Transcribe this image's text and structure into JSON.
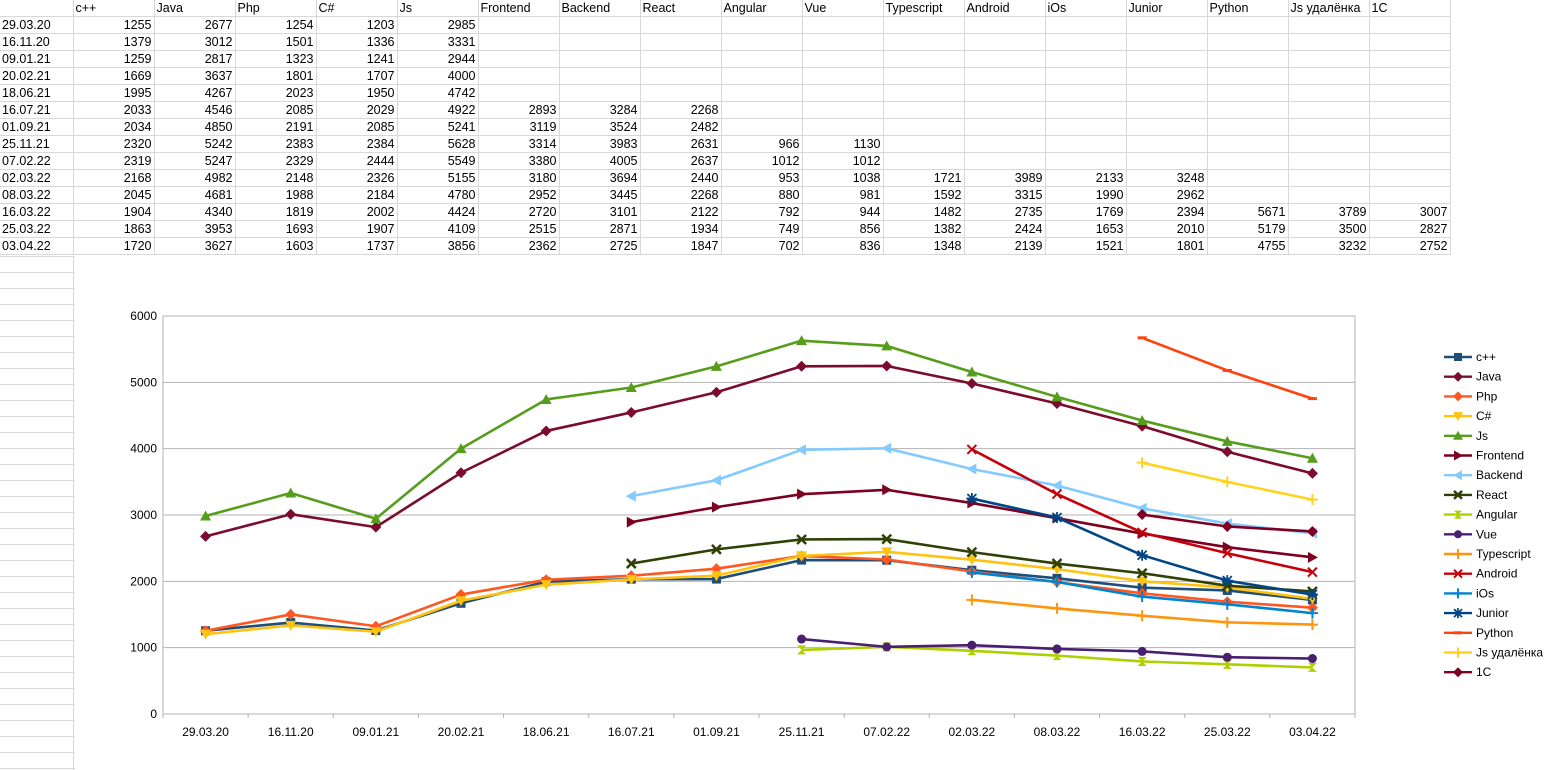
{
  "sheet": {
    "headers": [
      "",
      "c++",
      "Java",
      "Php",
      "C#",
      "Js",
      "Frontend",
      "Backend",
      "React",
      "Angular",
      "Vue",
      "Typescript",
      "Android",
      "iOs",
      "Junior",
      "Python",
      "Js удалёнка",
      "1C"
    ],
    "rows": [
      [
        "29.03.20",
        "1255",
        "2677",
        "1254",
        "1203",
        "2985",
        "",
        "",
        "",
        "",
        "",
        "",
        "",
        "",
        "",
        "",
        "",
        ""
      ],
      [
        "16.11.20",
        "1379",
        "3012",
        "1501",
        "1336",
        "3331",
        "",
        "",
        "",
        "",
        "",
        "",
        "",
        "",
        "",
        "",
        "",
        ""
      ],
      [
        "09.01.21",
        "1259",
        "2817",
        "1323",
        "1241",
        "2944",
        "",
        "",
        "",
        "",
        "",
        "",
        "",
        "",
        "",
        "",
        "",
        ""
      ],
      [
        "20.02.21",
        "1669",
        "3637",
        "1801",
        "1707",
        "4000",
        "",
        "",
        "",
        "",
        "",
        "",
        "",
        "",
        "",
        "",
        "",
        ""
      ],
      [
        "18.06.21",
        "1995",
        "4267",
        "2023",
        "1950",
        "4742",
        "",
        "",
        "",
        "",
        "",
        "",
        "",
        "",
        "",
        "",
        "",
        ""
      ],
      [
        "16.07.21",
        "2033",
        "4546",
        "2085",
        "2029",
        "4922",
        "2893",
        "3284",
        "2268",
        "",
        "",
        "",
        "",
        "",
        "",
        "",
        "",
        ""
      ],
      [
        "01.09.21",
        "2034",
        "4850",
        "2191",
        "2085",
        "5241",
        "3119",
        "3524",
        "2482",
        "",
        "",
        "",
        "",
        "",
        "",
        "",
        "",
        ""
      ],
      [
        "25.11.21",
        "2320",
        "5242",
        "2383",
        "2384",
        "5628",
        "3314",
        "3983",
        "2631",
        "966",
        "1130",
        "",
        "",
        "",
        "",
        "",
        "",
        ""
      ],
      [
        "07.02.22",
        "2319",
        "5247",
        "2329",
        "2444",
        "5549",
        "3380",
        "4005",
        "2637",
        "1012",
        "1012",
        "",
        "",
        "",
        "",
        "",
        "",
        ""
      ],
      [
        "02.03.22",
        "2168",
        "4982",
        "2148",
        "2326",
        "5155",
        "3180",
        "3694",
        "2440",
        "953",
        "1038",
        "1721",
        "3989",
        "2133",
        "3248",
        "",
        "",
        ""
      ],
      [
        "08.03.22",
        "2045",
        "4681",
        "1988",
        "2184",
        "4780",
        "2952",
        "3445",
        "2268",
        "880",
        "981",
        "1592",
        "3315",
        "1990",
        "2962",
        "",
        "",
        ""
      ],
      [
        "16.03.22",
        "1904",
        "4340",
        "1819",
        "2002",
        "4424",
        "2720",
        "3101",
        "2122",
        "792",
        "944",
        "1482",
        "2735",
        "1769",
        "2394",
        "5671",
        "3789",
        "3007"
      ],
      [
        "25.03.22",
        "1863",
        "3953",
        "1693",
        "1907",
        "4109",
        "2515",
        "2871",
        "1934",
        "749",
        "856",
        "1382",
        "2424",
        "1653",
        "2010",
        "5179",
        "3500",
        "2827"
      ],
      [
        "03.04.22",
        "1720",
        "3627",
        "1603",
        "1737",
        "3856",
        "2362",
        "2725",
        "1847",
        "702",
        "836",
        "1348",
        "2139",
        "1521",
        "1801",
        "4755",
        "3232",
        "2752"
      ]
    ]
  },
  "chart_data": {
    "type": "line",
    "categories": [
      "29.03.20",
      "16.11.20",
      "09.01.21",
      "20.02.21",
      "18.06.21",
      "16.07.21",
      "01.09.21",
      "25.11.21",
      "07.02.22",
      "02.03.22",
      "08.03.22",
      "16.03.22",
      "25.03.22",
      "03.04.22"
    ],
    "ylim": [
      0,
      6000
    ],
    "yticks": [
      "0",
      "1000",
      "2000",
      "3000",
      "4000",
      "5000",
      "6000"
    ],
    "grid": true,
    "legend_position": "right",
    "series": [
      {
        "name": "c++",
        "color": "#1f4e79",
        "marker": "square",
        "values": [
          1255,
          1379,
          1259,
          1669,
          1995,
          2033,
          2034,
          2320,
          2319,
          2168,
          2045,
          1904,
          1863,
          1720
        ]
      },
      {
        "name": "Java",
        "color": "#7b0c2e",
        "marker": "diamond",
        "values": [
          2677,
          3012,
          2817,
          3637,
          4267,
          4546,
          4850,
          5242,
          5247,
          4982,
          4681,
          4340,
          3953,
          3627
        ]
      },
      {
        "name": "Php",
        "color": "#ff5722",
        "marker": "diamond",
        "values": [
          1254,
          1501,
          1323,
          1801,
          2023,
          2085,
          2191,
          2383,
          2329,
          2148,
          1988,
          1819,
          1693,
          1603
        ]
      },
      {
        "name": "C#",
        "color": "#ffc20e",
        "marker": "triangle-down",
        "values": [
          1203,
          1336,
          1241,
          1707,
          1950,
          2029,
          2085,
          2384,
          2444,
          2326,
          2184,
          2002,
          1907,
          1737
        ]
      },
      {
        "name": "Js",
        "color": "#579d1c",
        "marker": "triangle-up",
        "values": [
          2985,
          3331,
          2944,
          4000,
          4742,
          4922,
          5241,
          5628,
          5549,
          5155,
          4780,
          4424,
          4109,
          3856
        ]
      },
      {
        "name": "Frontend",
        "color": "#7e0021",
        "marker": "triangle-right",
        "values": [
          null,
          null,
          null,
          null,
          null,
          2893,
          3119,
          3314,
          3380,
          3180,
          2952,
          2720,
          2515,
          2362
        ]
      },
      {
        "name": "Backend",
        "color": "#83caff",
        "marker": "triangle-left",
        "values": [
          null,
          null,
          null,
          null,
          null,
          3284,
          3524,
          3983,
          4005,
          3694,
          3445,
          3101,
          2871,
          2725
        ]
      },
      {
        "name": "React",
        "color": "#314004",
        "marker": "bowtie",
        "values": [
          null,
          null,
          null,
          null,
          null,
          2268,
          2482,
          2631,
          2637,
          2440,
          2268,
          2122,
          1934,
          1847
        ]
      },
      {
        "name": "Angular",
        "color": "#aecf00",
        "marker": "hourglass",
        "values": [
          null,
          null,
          null,
          null,
          null,
          null,
          null,
          966,
          1012,
          953,
          880,
          792,
          749,
          702
        ]
      },
      {
        "name": "Vue",
        "color": "#4b1f6f",
        "marker": "circle",
        "values": [
          null,
          null,
          null,
          null,
          null,
          null,
          null,
          1130,
          1012,
          1038,
          981,
          944,
          856,
          836
        ]
      },
      {
        "name": "Typescript",
        "color": "#ff950e",
        "marker": "plus",
        "values": [
          null,
          null,
          null,
          null,
          null,
          null,
          null,
          null,
          null,
          1721,
          1592,
          1482,
          1382,
          1348
        ]
      },
      {
        "name": "Android",
        "color": "#c5000b",
        "marker": "x",
        "values": [
          null,
          null,
          null,
          null,
          null,
          null,
          null,
          null,
          null,
          3989,
          3315,
          2735,
          2424,
          2139
        ]
      },
      {
        "name": "iOs",
        "color": "#0084d1",
        "marker": "plus",
        "values": [
          null,
          null,
          null,
          null,
          null,
          null,
          null,
          null,
          null,
          2133,
          1990,
          1769,
          1653,
          1521
        ]
      },
      {
        "name": "Junior",
        "color": "#004586",
        "marker": "star",
        "values": [
          null,
          null,
          null,
          null,
          null,
          null,
          null,
          null,
          null,
          3248,
          2962,
          2394,
          2010,
          1801
        ]
      },
      {
        "name": "Python",
        "color": "#ff420e",
        "marker": "dash",
        "values": [
          null,
          null,
          null,
          null,
          null,
          null,
          null,
          null,
          null,
          null,
          null,
          5671,
          5179,
          4755
        ]
      },
      {
        "name": "Js удалёнка",
        "color": "#ffd320",
        "marker": "plus",
        "values": [
          null,
          null,
          null,
          null,
          null,
          null,
          null,
          null,
          null,
          null,
          null,
          3789,
          3500,
          3232
        ]
      },
      {
        "name": "1C",
        "color": "#7e0021",
        "marker": "diamond",
        "values": [
          null,
          null,
          null,
          null,
          null,
          null,
          null,
          null,
          null,
          null,
          null,
          3007,
          2827,
          2752
        ]
      }
    ]
  }
}
